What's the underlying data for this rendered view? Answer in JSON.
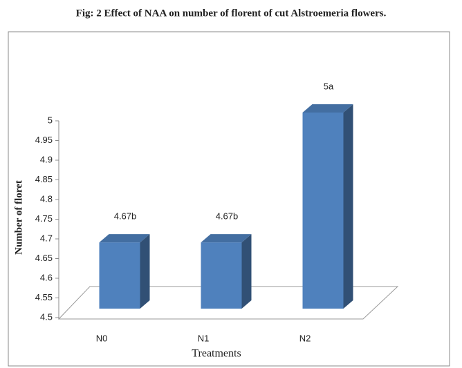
{
  "chart_data": {
    "type": "bar3d",
    "title": "Fig: 2  Effect of NAA on number of florent of cut Alstroemeria flowers.",
    "x_label": "Treatments",
    "y_label": "Number of floret",
    "categories": [
      "N0",
      "N1",
      "N2"
    ],
    "values": [
      4.67,
      4.67,
      5
    ],
    "value_labels": [
      "4.67b",
      "4.67b",
      "5a"
    ],
    "color": "#4f81bd",
    "ylim": [
      4.5,
      5
    ],
    "yticks": [
      4.5,
      4.55,
      4.6,
      4.65,
      4.7,
      4.75,
      4.8,
      4.85,
      4.9,
      4.95,
      5
    ]
  }
}
